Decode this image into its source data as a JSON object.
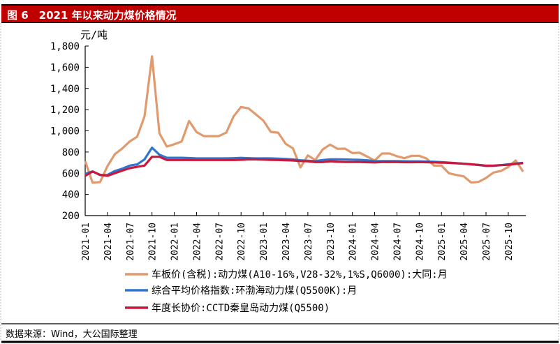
{
  "title": "图 6　2021 年以来动力煤价格情况",
  "source": "数据来源：Wind，大公国际整理",
  "colors": {
    "title_bar": "#c00000",
    "series": [
      "#e09a6e",
      "#2f75d0",
      "#c8193c"
    ]
  },
  "chart_data": {
    "type": "line",
    "ylabel": "元/吨",
    "ylim": [
      200,
      1800
    ],
    "yticks": [
      "200",
      "400",
      "600",
      "800",
      "1,000",
      "1,200",
      "1,400",
      "1,600",
      "1,800"
    ],
    "ytick_values": [
      200,
      400,
      600,
      800,
      1000,
      1200,
      1400,
      1600,
      1800
    ],
    "x": [
      "2021-01",
      "2021-02",
      "2021-03",
      "2021-04",
      "2021-05",
      "2021-06",
      "2021-07",
      "2021-08",
      "2021-09",
      "2021-10",
      "2021-11",
      "2021-12",
      "2022-01",
      "2022-02",
      "2022-03",
      "2022-04",
      "2022-05",
      "2022-06",
      "2022-07",
      "2022-08",
      "2022-09",
      "2022-10",
      "2022-11",
      "2022-12",
      "2023-01",
      "2023-02",
      "2023-03",
      "2023-04",
      "2023-05",
      "2023-06",
      "2023-07",
      "2023-08",
      "2023-09",
      "2023-10",
      "2023-11",
      "2023-12",
      "2024-01",
      "2024-02",
      "2024-03",
      "2024-04",
      "2024-05",
      "2024-06",
      "2024-07",
      "2024-08",
      "2024-09",
      "2024-10",
      "2024-11",
      "2024-12",
      "2025-01",
      "2025-02",
      "2025-03",
      "2025-04",
      "2025-05",
      "2025-06",
      "2025-07",
      "2025-08",
      "2025-09",
      "2025-10",
      "2025-11",
      "2025-12"
    ],
    "xticks": [
      "2021-01",
      "2021-04",
      "2021-07",
      "2021-10",
      "2022-01",
      "2022-04",
      "2022-07",
      "2022-10",
      "2023-01",
      "2023-04",
      "2023-07",
      "2023-10",
      "2024-01",
      "2024-04",
      "2024-07",
      "2024-10",
      "2025-01",
      "2025-04",
      "2025-07",
      "2025-10"
    ],
    "grid": false,
    "legend": "bottom",
    "series": [
      {
        "name": "车板价(含税):动力煤(A10-16%,V28-32%,1%S,Q6000):大同:月",
        "values": [
          715,
          510,
          516,
          667,
          780,
          834,
          900,
          944,
          1137,
          1703,
          977,
          852,
          873,
          900,
          1093,
          988,
          950,
          950,
          950,
          983,
          1137,
          1225,
          1212,
          1155,
          1097,
          990,
          983,
          878,
          834,
          654,
          768,
          725,
          825,
          870,
          830,
          832,
          790,
          793,
          757,
          720,
          786,
          786,
          760,
          742,
          764,
          764,
          738,
          672,
          672,
          600,
          584,
          571,
          512,
          518,
          555,
          606,
          621,
          659,
          720,
          615
        ]
      },
      {
        "name": "综合平均价格指数:环渤海动力煤(Q5500K):月",
        "values": [
          595,
          617,
          582,
          584,
          621,
          643,
          672,
          683,
          731,
          841,
          775,
          746,
          746,
          746,
          743,
          740,
          740,
          740,
          740,
          740,
          742,
          745,
          742,
          740,
          740,
          740,
          738,
          735,
          730,
          722,
          718,
          715,
          725,
          731,
          731,
          730,
          728,
          726,
          722,
          714,
          714,
          714,
          714,
          713,
          712,
          712,
          710,
          708,
          705,
          700,
          695,
          690,
          684,
          678,
          668,
          670,
          676,
          684,
          692,
          698
        ]
      },
      {
        "name": "年度长协价:CCTD秦皇岛动力煤(Q5500)",
        "values": [
          575,
          617,
          585,
          575,
          600,
          625,
          648,
          660,
          672,
          755,
          755,
          725,
          725,
          725,
          725,
          725,
          725,
          725,
          725,
          725,
          725,
          727,
          731,
          731,
          728,
          726,
          725,
          722,
          720,
          715,
          712,
          705,
          705,
          712,
          708,
          706,
          706,
          706,
          704,
          702,
          705,
          705,
          705,
          704,
          704,
          705,
          704,
          702,
          700,
          698,
          694,
          690,
          684,
          678,
          672,
          672,
          676,
          680,
          688,
          695
        ]
      }
    ]
  }
}
